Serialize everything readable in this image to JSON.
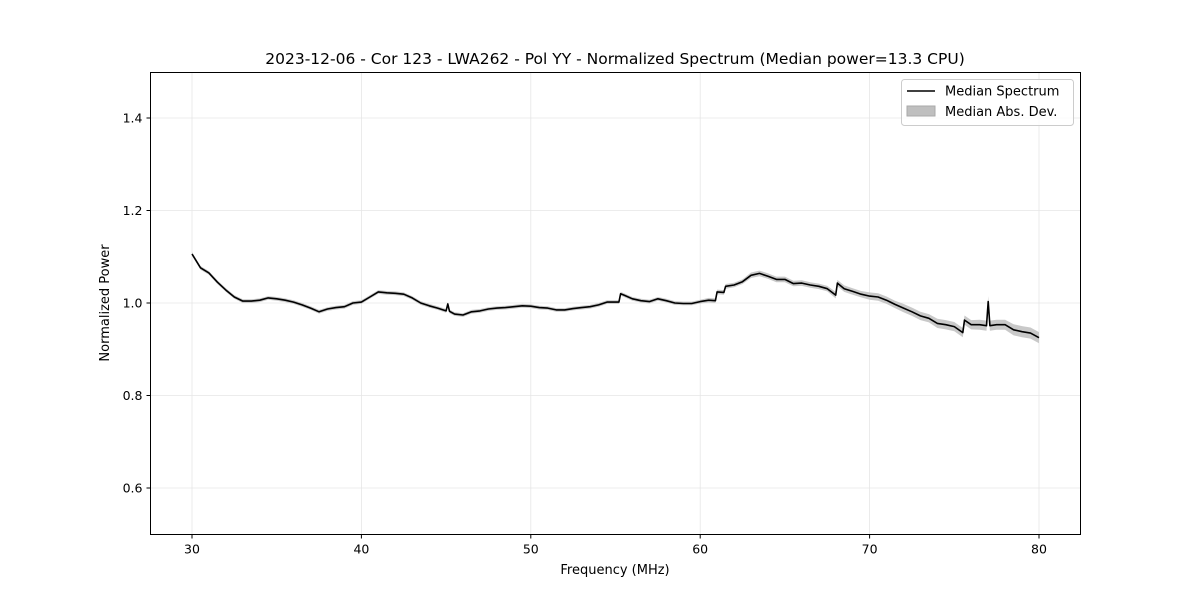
{
  "chart_data": {
    "type": "line",
    "title": "2023-12-06 - Cor 123 - LWA262 - Pol YY - Normalized Spectrum (Median power=13.3 CPU)",
    "xlabel": "Frequency (MHz)",
    "ylabel": "Normalized Power",
    "xlim": [
      27.5,
      82.5
    ],
    "ylim": [
      0.5,
      1.5
    ],
    "xticks": [
      30,
      40,
      50,
      60,
      70,
      80
    ],
    "yticks": [
      0.6,
      0.8,
      1.0,
      1.2,
      1.4
    ],
    "ytick_labels": [
      "0.6",
      "0.8",
      "1.0",
      "1.2",
      "1.4"
    ],
    "grid": true,
    "legend_position": "top-right",
    "legend": [
      "Median Spectrum",
      "Median Abs. Dev."
    ],
    "colors": {
      "line": "#000000",
      "band": "#bfbfbf",
      "grid": "#e6e6e6"
    },
    "series": {
      "name": "Median Spectrum",
      "points_x_y_mad": [
        [
          30,
          1.106,
          0.004
        ],
        [
          30.5,
          1.076,
          0.004
        ],
        [
          31,
          1.065,
          0.004
        ],
        [
          31.5,
          1.045,
          0.004
        ],
        [
          32,
          1.028,
          0.004
        ],
        [
          32.5,
          1.013,
          0.004
        ],
        [
          33,
          1.004,
          0.004
        ],
        [
          33.5,
          1.004,
          0.004
        ],
        [
          34,
          1.006,
          0.004
        ],
        [
          34.5,
          1.011,
          0.004
        ],
        [
          35,
          1.009,
          0.004
        ],
        [
          35.5,
          1.006,
          0.004
        ],
        [
          36,
          1.002,
          0.004
        ],
        [
          36.5,
          0.996,
          0.004
        ],
        [
          37,
          0.989,
          0.004
        ],
        [
          37.5,
          0.981,
          0.004
        ],
        [
          38,
          0.987,
          0.004
        ],
        [
          38.5,
          0.99,
          0.004
        ],
        [
          39,
          0.992,
          0.004
        ],
        [
          39.5,
          1.0,
          0.004
        ],
        [
          40,
          1.002,
          0.004
        ],
        [
          40.5,
          1.013,
          0.004
        ],
        [
          41,
          1.024,
          0.004
        ],
        [
          41.5,
          1.022,
          0.004
        ],
        [
          42,
          1.021,
          0.004
        ],
        [
          42.5,
          1.019,
          0.004
        ],
        [
          43,
          1.011,
          0.004
        ],
        [
          43.5,
          1.0,
          0.004
        ],
        [
          44,
          0.994,
          0.004
        ],
        [
          44.5,
          0.989,
          0.004
        ],
        [
          45,
          0.983,
          0.004
        ],
        [
          45.1,
          0.998,
          0.004
        ],
        [
          45.2,
          0.982,
          0.004
        ],
        [
          45.5,
          0.976,
          0.004
        ],
        [
          46,
          0.974,
          0.004
        ],
        [
          46.5,
          0.981,
          0.004
        ],
        [
          47,
          0.983,
          0.004
        ],
        [
          47.5,
          0.987,
          0.004
        ],
        [
          48,
          0.989,
          0.004
        ],
        [
          48.5,
          0.99,
          0.004
        ],
        [
          49,
          0.992,
          0.004
        ],
        [
          49.5,
          0.994,
          0.004
        ],
        [
          50,
          0.993,
          0.004
        ],
        [
          50.5,
          0.99,
          0.004
        ],
        [
          51,
          0.989,
          0.004
        ],
        [
          51.5,
          0.985,
          0.004
        ],
        [
          52,
          0.985,
          0.004
        ],
        [
          52.5,
          0.988,
          0.004
        ],
        [
          53,
          0.99,
          0.004
        ],
        [
          53.5,
          0.992,
          0.004
        ],
        [
          54,
          0.996,
          0.004
        ],
        [
          54.5,
          1.002,
          0.004
        ],
        [
          55.2,
          1.002,
          0.004
        ],
        [
          55.3,
          1.02,
          0.004
        ],
        [
          55.5,
          1.017,
          0.004
        ],
        [
          56,
          1.009,
          0.004
        ],
        [
          56.5,
          1.005,
          0.004
        ],
        [
          57,
          1.003,
          0.004
        ],
        [
          57.5,
          1.009,
          0.004
        ],
        [
          58,
          1.005,
          0.004
        ],
        [
          58.5,
          1.0,
          0.004
        ],
        [
          59,
          0.999,
          0.004
        ],
        [
          59.5,
          0.999,
          0.004
        ],
        [
          60,
          1.003,
          0.004
        ],
        [
          60.5,
          1.006,
          0.005
        ],
        [
          60.9,
          1.005,
          0.005
        ],
        [
          61,
          1.024,
          0.005
        ],
        [
          61.4,
          1.023,
          0.005
        ],
        [
          61.5,
          1.036,
          0.005
        ],
        [
          62,
          1.039,
          0.005
        ],
        [
          62.5,
          1.046,
          0.005
        ],
        [
          63,
          1.06,
          0.006
        ],
        [
          63.5,
          1.064,
          0.006
        ],
        [
          64,
          1.058,
          0.006
        ],
        [
          64.5,
          1.051,
          0.006
        ],
        [
          65,
          1.051,
          0.006
        ],
        [
          65.5,
          1.042,
          0.006
        ],
        [
          66,
          1.043,
          0.006
        ],
        [
          66.5,
          1.039,
          0.006
        ],
        [
          67,
          1.036,
          0.006
        ],
        [
          67.5,
          1.031,
          0.006
        ],
        [
          68,
          1.017,
          0.007
        ],
        [
          68.1,
          1.043,
          0.007
        ],
        [
          68.5,
          1.031,
          0.007
        ],
        [
          69,
          1.025,
          0.007
        ],
        [
          69.5,
          1.019,
          0.007
        ],
        [
          70,
          1.015,
          0.008
        ],
        [
          70.5,
          1.013,
          0.008
        ],
        [
          71,
          1.006,
          0.008
        ],
        [
          71.5,
          0.997,
          0.008
        ],
        [
          72,
          0.989,
          0.009
        ],
        [
          72.5,
          0.981,
          0.009
        ],
        [
          73,
          0.972,
          0.009
        ],
        [
          73.5,
          0.967,
          0.009
        ],
        [
          74,
          0.956,
          0.01
        ],
        [
          74.5,
          0.953,
          0.01
        ],
        [
          75,
          0.949,
          0.01
        ],
        [
          75.5,
          0.936,
          0.01
        ],
        [
          75.6,
          0.963,
          0.01
        ],
        [
          76,
          0.953,
          0.01
        ],
        [
          76.5,
          0.953,
          0.011
        ],
        [
          76.9,
          0.951,
          0.011
        ],
        [
          77,
          1.003,
          0.012
        ],
        [
          77.1,
          0.951,
          0.011
        ],
        [
          77.5,
          0.953,
          0.011
        ],
        [
          78,
          0.953,
          0.011
        ],
        [
          78.5,
          0.942,
          0.012
        ],
        [
          79,
          0.938,
          0.012
        ],
        [
          79.5,
          0.935,
          0.012
        ],
        [
          80,
          0.925,
          0.012
        ]
      ]
    }
  }
}
